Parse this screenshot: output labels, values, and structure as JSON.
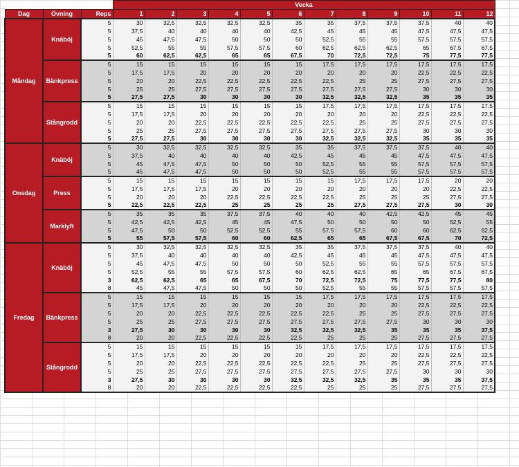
{
  "header": {
    "dag": "Dag",
    "ovning": "Övning",
    "reps": "Reps",
    "vecka": "Vecka",
    "weeks": [
      "1",
      "2",
      "3",
      "4",
      "5",
      "6",
      "7",
      "8",
      "9",
      "10",
      "11",
      "12"
    ]
  },
  "days": [
    {
      "name": "Måndag",
      "exercises": [
        {
          "name": "Knäböj",
          "rows": [
            {
              "reps": "5",
              "v": [
                "30",
                "32,5",
                "32,5",
                "32,5",
                "32,5",
                "35",
                "35",
                "37,5",
                "37,5",
                "37,5",
                "40",
                "40"
              ]
            },
            {
              "reps": "5",
              "v": [
                "37,5",
                "40",
                "40",
                "40",
                "40",
                "42,5",
                "45",
                "45",
                "45",
                "47,5",
                "47,5",
                "47,5"
              ]
            },
            {
              "reps": "5",
              "v": [
                "45",
                "47,5",
                "47,5",
                "50",
                "50",
                "50",
                "52,5",
                "55",
                "55",
                "57,5",
                "57,5",
                "57,5"
              ]
            },
            {
              "reps": "5",
              "v": [
                "52,5",
                "55",
                "55",
                "57,5",
                "57,5",
                "60",
                "62,5",
                "62,5",
                "62,5",
                "65",
                "67,5",
                "67,5"
              ]
            },
            {
              "reps": "5",
              "v": [
                "60",
                "62,5",
                "62,5",
                "65",
                "65",
                "67,5",
                "70",
                "72,5",
                "72,5",
                "75",
                "77,5",
                "77,5"
              ],
              "bold": true
            }
          ]
        },
        {
          "name": "Bänkpress",
          "rows": [
            {
              "reps": "5",
              "v": [
                "15",
                "15",
                "15",
                "15",
                "15",
                "15",
                "17,5",
                "17,5",
                "17,5",
                "17,5",
                "17,5",
                "17,5"
              ]
            },
            {
              "reps": "5",
              "v": [
                "17,5",
                "17,5",
                "20",
                "20",
                "20",
                "20",
                "20",
                "20",
                "20",
                "22,5",
                "22,5",
                "22,5"
              ]
            },
            {
              "reps": "5",
              "v": [
                "20",
                "20",
                "22,5",
                "22,5",
                "22,5",
                "22,5",
                "22,5",
                "25",
                "25",
                "27,5",
                "27,5",
                "27,5"
              ]
            },
            {
              "reps": "5",
              "v": [
                "25",
                "25",
                "27,5",
                "27,5",
                "27,5",
                "27,5",
                "27,5",
                "27,5",
                "27,5",
                "30",
                "30",
                "30"
              ]
            },
            {
              "reps": "5",
              "v": [
                "27,5",
                "27,5",
                "30",
                "30",
                "30",
                "30",
                "32,5",
                "32,5",
                "32,5",
                "35",
                "35",
                "35"
              ],
              "bold": true
            }
          ]
        },
        {
          "name": "Stångrodd",
          "rows": [
            {
              "reps": "5",
              "v": [
                "15",
                "15",
                "15",
                "15",
                "15",
                "15",
                "17,5",
                "17,5",
                "17,5",
                "17,5",
                "17,5",
                "17,5"
              ]
            },
            {
              "reps": "5",
              "v": [
                "17,5",
                "17,5",
                "20",
                "20",
                "20",
                "20",
                "20",
                "20",
                "20",
                "22,5",
                "22,5",
                "22,5"
              ]
            },
            {
              "reps": "5",
              "v": [
                "20",
                "20",
                "22,5",
                "22,5",
                "22,5",
                "22,5",
                "22,5",
                "25",
                "25",
                "27,5",
                "27,5",
                "27,5"
              ]
            },
            {
              "reps": "5",
              "v": [
                "25",
                "25",
                "27,5",
                "27,5",
                "27,5",
                "27,5",
                "27,5",
                "27,5",
                "27,5",
                "30",
                "30",
                "30"
              ]
            },
            {
              "reps": "5",
              "v": [
                "27,5",
                "27,5",
                "30",
                "30",
                "30",
                "30",
                "32,5",
                "32,5",
                "32,5",
                "35",
                "35",
                "35"
              ],
              "bold": true
            }
          ]
        }
      ]
    },
    {
      "name": "Onsdag",
      "exercises": [
        {
          "name": "Knäböj",
          "rows": [
            {
              "reps": "5",
              "v": [
                "30",
                "32,5",
                "32,5",
                "32,5",
                "32,5",
                "35",
                "35",
                "37,5",
                "37,5",
                "37,5",
                "40",
                "40"
              ]
            },
            {
              "reps": "5",
              "v": [
                "37,5",
                "40",
                "40",
                "40",
                "40",
                "42,5",
                "45",
                "45",
                "45",
                "47,5",
                "47,5",
                "47,5"
              ]
            },
            {
              "reps": "5",
              "v": [
                "45",
                "47,5",
                "47,5",
                "50",
                "50",
                "50",
                "52,5",
                "55",
                "55",
                "57,5",
                "57,5",
                "57,5"
              ]
            },
            {
              "reps": "5",
              "v": [
                "45",
                "47,5",
                "47,5",
                "50",
                "50",
                "50",
                "52,5",
                "55",
                "55",
                "57,5",
                "57,5",
                "57,5"
              ]
            }
          ]
        },
        {
          "name": "Press",
          "rows": [
            {
              "reps": "5",
              "v": [
                "15",
                "15",
                "15",
                "15",
                "15",
                "15",
                "15",
                "17,5",
                "17,5",
                "17,5",
                "20",
                "20"
              ]
            },
            {
              "reps": "5",
              "v": [
                "17,5",
                "17,5",
                "17,5",
                "20",
                "20",
                "20",
                "20",
                "20",
                "20",
                "20",
                "22,5",
                "22,5"
              ]
            },
            {
              "reps": "5",
              "v": [
                "20",
                "20",
                "20",
                "22,5",
                "22,5",
                "22,5",
                "22,5",
                "25",
                "25",
                "25",
                "27,5",
                "27,5"
              ]
            },
            {
              "reps": "5",
              "v": [
                "22,5",
                "22,5",
                "22,5",
                "25",
                "25",
                "25",
                "25",
                "27,5",
                "27,5",
                "27,5",
                "30",
                "30"
              ],
              "bold": true
            }
          ]
        },
        {
          "name": "Marklyft",
          "rows": [
            {
              "reps": "5",
              "v": [
                "35",
                "35",
                "35",
                "37,5",
                "37,5",
                "40",
                "40",
                "40",
                "42,5",
                "42,5",
                "45",
                "45"
              ]
            },
            {
              "reps": "5",
              "v": [
                "42,5",
                "42,5",
                "42,5",
                "45",
                "45",
                "47,5",
                "50",
                "50",
                "50",
                "50",
                "52,5",
                "55"
              ]
            },
            {
              "reps": "5",
              "v": [
                "47,5",
                "50",
                "50",
                "52,5",
                "52,5",
                "55",
                "57,5",
                "57,5",
                "60",
                "60",
                "62,5",
                "62,5"
              ]
            },
            {
              "reps": "5",
              "v": [
                "55",
                "57,5",
                "57,5",
                "60",
                "60",
                "62,5",
                "65",
                "65",
                "67,5",
                "67,5",
                "70",
                "72,5"
              ],
              "bold": true
            }
          ]
        }
      ]
    },
    {
      "name": "Fredag",
      "exercises": [
        {
          "name": "Knäböj",
          "rows": [
            {
              "reps": "5",
              "v": [
                "30",
                "32,5",
                "32,5",
                "32,5",
                "32,5",
                "35",
                "35",
                "37,5",
                "37,5",
                "37,5",
                "40",
                "40"
              ]
            },
            {
              "reps": "5",
              "v": [
                "37,5",
                "40",
                "40",
                "40",
                "40",
                "42,5",
                "45",
                "45",
                "45",
                "47,5",
                "47,5",
                "47,5"
              ]
            },
            {
              "reps": "5",
              "v": [
                "45",
                "47,5",
                "47,5",
                "50",
                "50",
                "50",
                "52,5",
                "55",
                "55",
                "57,5",
                "57,5",
                "57,5"
              ]
            },
            {
              "reps": "5",
              "v": [
                "52,5",
                "55",
                "55",
                "57,5",
                "57,5",
                "60",
                "62,5",
                "62,5",
                "65",
                "65",
                "67,5",
                "67,5"
              ]
            },
            {
              "reps": "3",
              "v": [
                "62,5",
                "62,5",
                "65",
                "65",
                "67,5",
                "70",
                "72,5",
                "72,5",
                "75",
                "77,5",
                "77,5",
                "80"
              ],
              "bold": true
            },
            {
              "reps": "8",
              "v": [
                "45",
                "47,5",
                "47,5",
                "50",
                "50",
                "50",
                "52,5",
                "55",
                "55",
                "57,5",
                "57,5",
                "57,5"
              ]
            }
          ]
        },
        {
          "name": "Bänkpress",
          "rows": [
            {
              "reps": "5",
              "v": [
                "15",
                "15",
                "15",
                "15",
                "15",
                "15",
                "17,5",
                "17,5",
                "17,5",
                "17,5",
                "17,5",
                "17,5"
              ]
            },
            {
              "reps": "5",
              "v": [
                "17,5",
                "17,5",
                "20",
                "20",
                "20",
                "20",
                "20",
                "20",
                "20",
                "22,5",
                "22,5",
                "22,5"
              ]
            },
            {
              "reps": "5",
              "v": [
                "20",
                "20",
                "22,5",
                "22,5",
                "22,5",
                "22,5",
                "22,5",
                "25",
                "25",
                "27,5",
                "27,5",
                "27,5"
              ]
            },
            {
              "reps": "5",
              "v": [
                "25",
                "25",
                "27,5",
                "27,5",
                "27,5",
                "27,5",
                "27,5",
                "27,5",
                "27,5",
                "30",
                "30",
                "30"
              ]
            },
            {
              "reps": "3",
              "v": [
                "27,5",
                "30",
                "30",
                "30",
                "30",
                "32,5",
                "32,5",
                "32,5",
                "35",
                "35",
                "35",
                "37,5"
              ],
              "bold": true
            },
            {
              "reps": "8",
              "v": [
                "20",
                "20",
                "22,5",
                "22,5",
                "22,5",
                "22,5",
                "25",
                "25",
                "25",
                "27,5",
                "27,5",
                "27,5"
              ]
            }
          ]
        },
        {
          "name": "Stångrodd",
          "rows": [
            {
              "reps": "5",
              "v": [
                "15",
                "15",
                "15",
                "15",
                "15",
                "15",
                "17,5",
                "17,5",
                "17,5",
                "17,5",
                "17,5",
                "17,5"
              ]
            },
            {
              "reps": "5",
              "v": [
                "17,5",
                "17,5",
                "20",
                "20",
                "20",
                "20",
                "20",
                "20",
                "20",
                "22,5",
                "22,5",
                "22,5"
              ]
            },
            {
              "reps": "5",
              "v": [
                "20",
                "20",
                "22,5",
                "22,5",
                "22,5",
                "22,5",
                "22,5",
                "25",
                "25",
                "27,5",
                "27,5",
                "27,5"
              ]
            },
            {
              "reps": "5",
              "v": [
                "25",
                "25",
                "27,5",
                "27,5",
                "27,5",
                "27,5",
                "27,5",
                "27,5",
                "27,5",
                "30",
                "30",
                "30"
              ]
            },
            {
              "reps": "3",
              "v": [
                "27,5",
                "30",
                "30",
                "30",
                "30",
                "32,5",
                "32,5",
                "32,5",
                "35",
                "35",
                "35",
                "37,5"
              ],
              "bold": true
            },
            {
              "reps": "8",
              "v": [
                "20",
                "20",
                "22,5",
                "22,5",
                "22,5",
                "22,5",
                "25",
                "25",
                "25",
                "27,5",
                "27,5",
                "27,5"
              ]
            }
          ]
        }
      ]
    }
  ]
}
